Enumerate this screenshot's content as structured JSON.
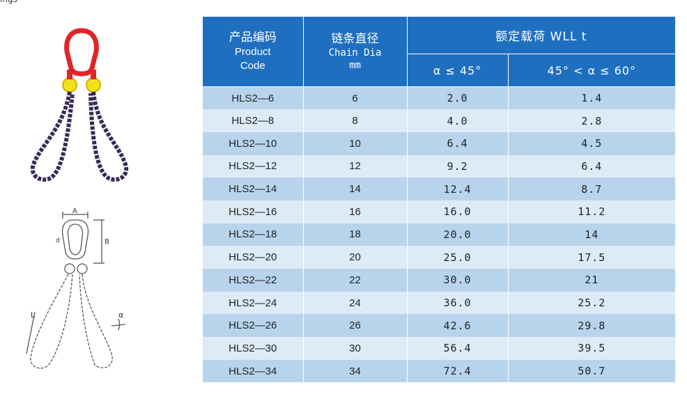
{
  "corner_text": "ings",
  "table": {
    "headers": {
      "code_cn": "产品编码",
      "code_en1": "Product",
      "code_en2": "Code",
      "dia_cn": "链条直径",
      "dia_en1": "Chain Dia",
      "dia_en2": "mm",
      "wll": "额定载荷 WLL t",
      "angle1": "α ≤ 45°",
      "angle2": "45° < α ≤ 60°"
    },
    "rows": [
      {
        "code": "HLS2—6",
        "dia": "6",
        "w1": "2.0",
        "w2": "1.4"
      },
      {
        "code": "HLS2—8",
        "dia": "8",
        "w1": "4.0",
        "w2": "2.8"
      },
      {
        "code": "HLS2—10",
        "dia": "10",
        "w1": "6.4",
        "w2": "4.5"
      },
      {
        "code": "HLS2—12",
        "dia": "12",
        "w1": "9.2",
        "w2": "6.4"
      },
      {
        "code": "HLS2—14",
        "dia": "14",
        "w1": "12.4",
        "w2": "8.7"
      },
      {
        "code": "HLS2—16",
        "dia": "16",
        "w1": "16.0",
        "w2": "11.2"
      },
      {
        "code": "HLS2—18",
        "dia": "18",
        "w1": "20.0",
        "w2": "14"
      },
      {
        "code": "HLS2—20",
        "dia": "20",
        "w1": "25.0",
        "w2": "17.5"
      },
      {
        "code": "HLS2—22",
        "dia": "22",
        "w1": "30.0",
        "w2": "21"
      },
      {
        "code": "HLS2—24",
        "dia": "24",
        "w1": "36.0",
        "w2": "25.2"
      },
      {
        "code": "HLS2—26",
        "dia": "26",
        "w1": "42.6",
        "w2": "29.8"
      },
      {
        "code": "HLS2—30",
        "dia": "30",
        "w1": "56.4",
        "w2": "39.5"
      },
      {
        "code": "HLS2—34",
        "dia": "34",
        "w1": "72.4",
        "w2": "50.7"
      }
    ]
  },
  "drawing_labels": {
    "a": "A",
    "b": "B",
    "d": "d",
    "l": "L",
    "alpha": "α"
  }
}
